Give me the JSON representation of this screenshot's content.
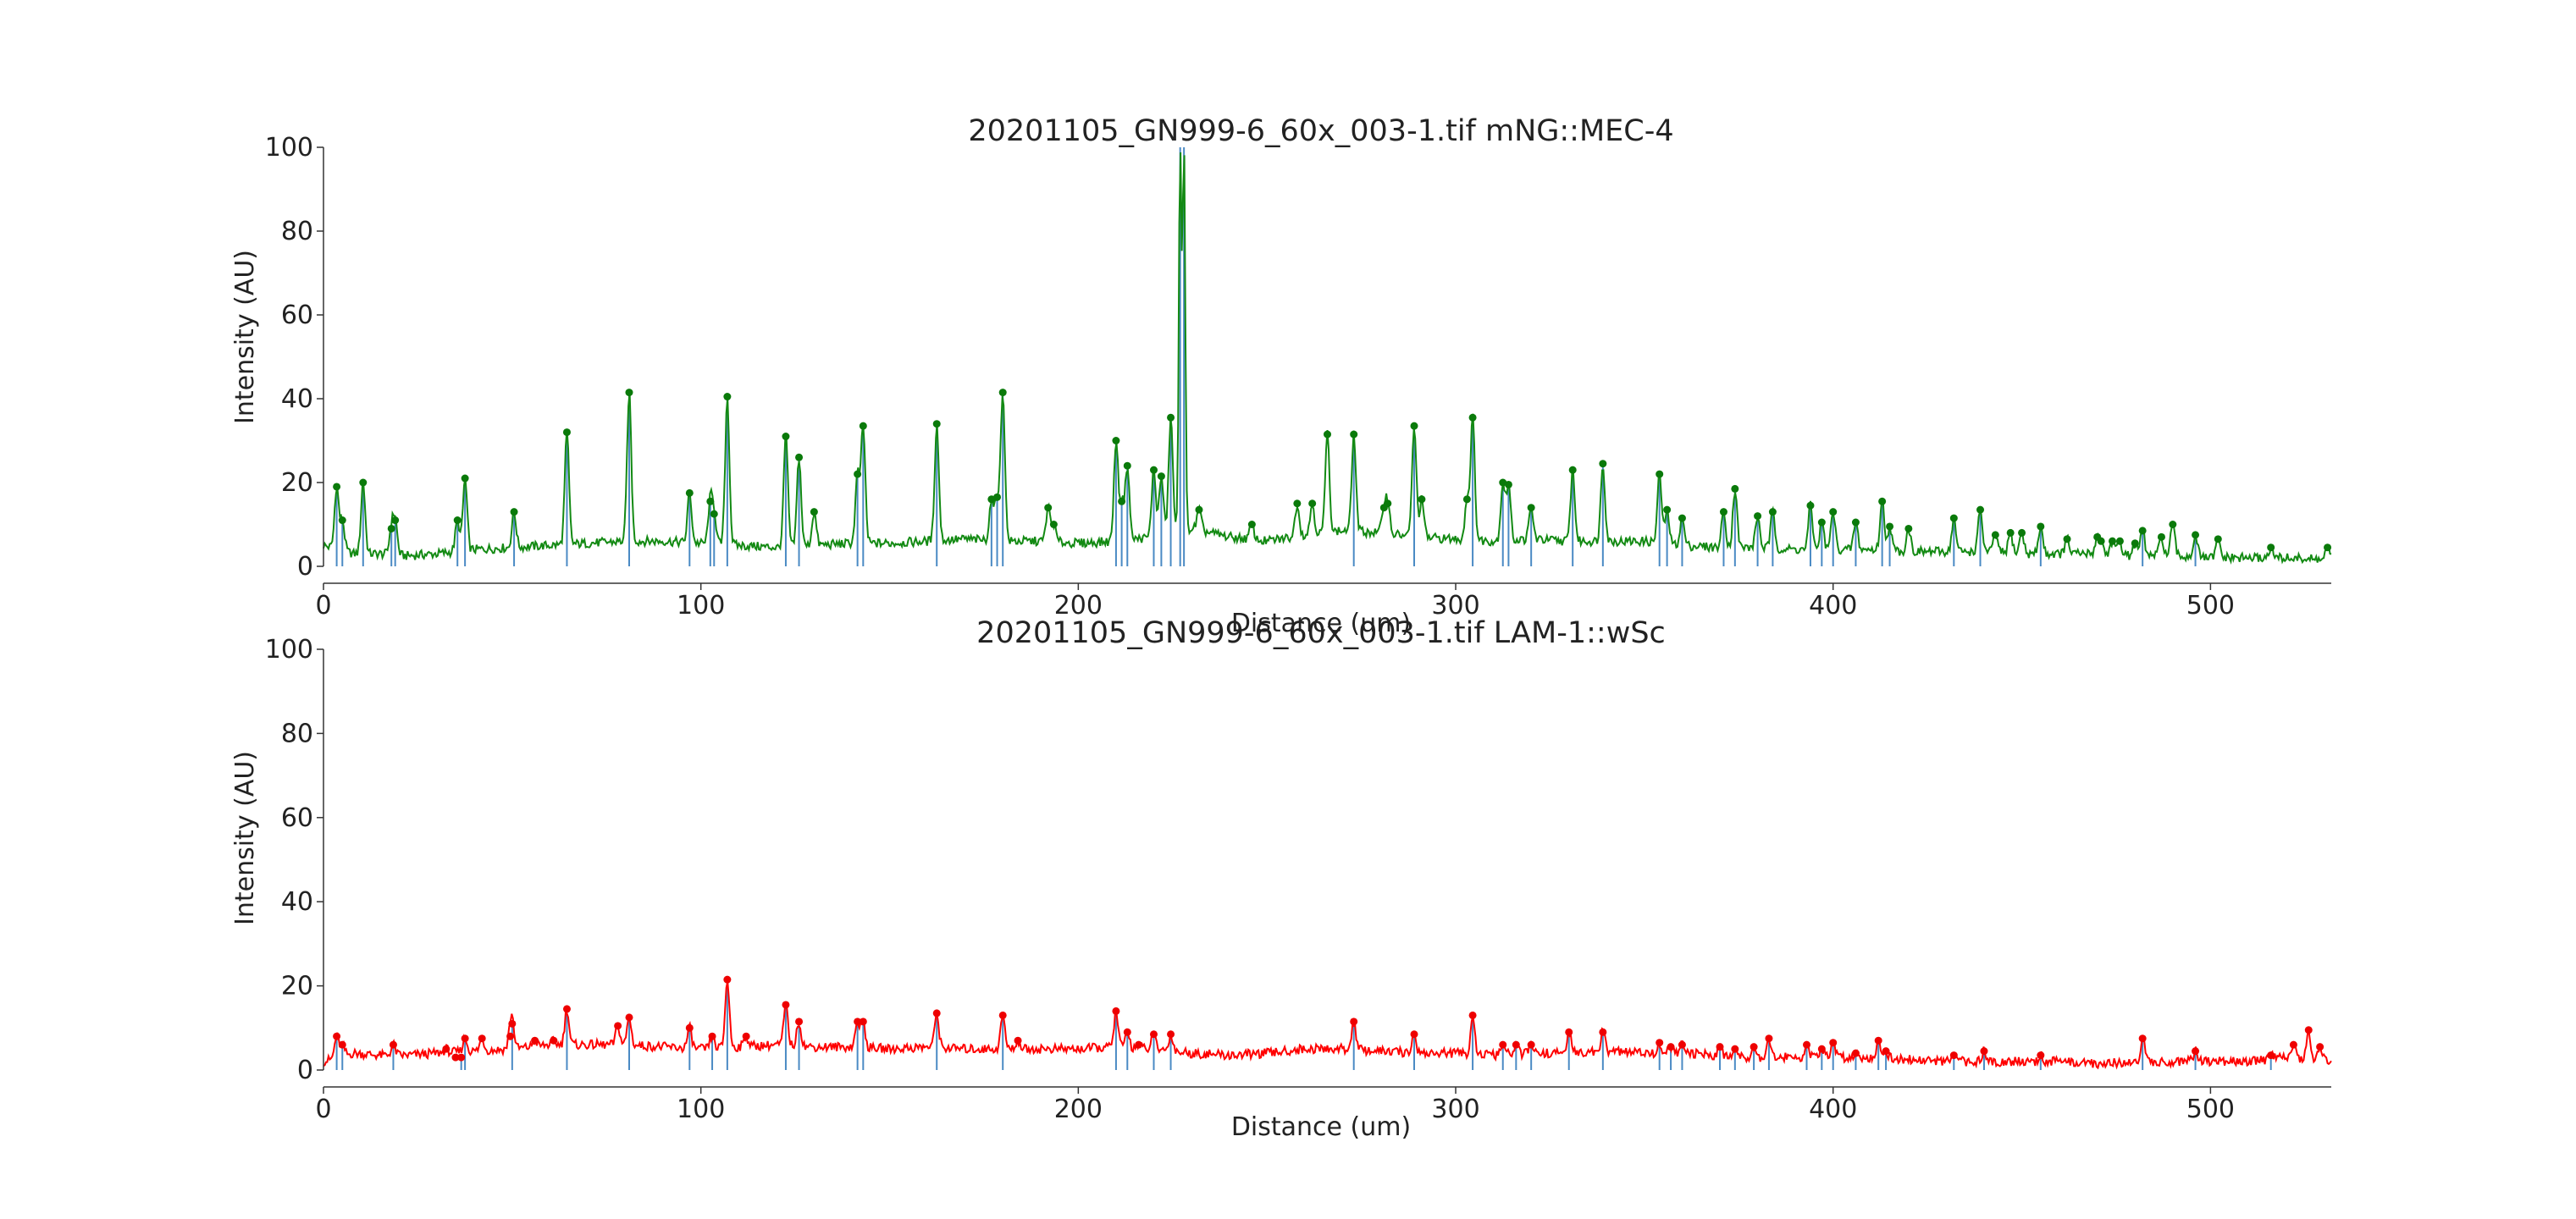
{
  "chart_data": [
    {
      "type": "line",
      "title": "20201105_GN999-6_60x_003-1.tif mNG::MEC-4",
      "xlabel": "Distance (um)",
      "ylabel": "Intensity (AU)",
      "xlim": [
        0,
        532
      ],
      "ylim": [
        0,
        100
      ],
      "xticks": [
        "0",
        "100",
        "200",
        "300",
        "400",
        "500"
      ],
      "yticks": [
        "0",
        "20",
        "40",
        "60",
        "80",
        "100"
      ],
      "grid": false,
      "line_color": "#138a13",
      "marker_color": "#0a7a0a",
      "peak_line_color": "#4a8ac4",
      "baseline": [
        [
          0,
          5
        ],
        [
          8,
          3
        ],
        [
          15,
          3
        ],
        [
          22,
          2.5
        ],
        [
          30,
          3
        ],
        [
          40,
          4
        ],
        [
          50,
          4.5
        ],
        [
          60,
          5
        ],
        [
          70,
          5.5
        ],
        [
          80,
          6
        ],
        [
          90,
          6
        ],
        [
          100,
          5.5
        ],
        [
          110,
          5
        ],
        [
          120,
          4.5
        ],
        [
          130,
          5
        ],
        [
          140,
          5.5
        ],
        [
          150,
          5.5
        ],
        [
          160,
          6
        ],
        [
          170,
          6.5
        ],
        [
          180,
          6
        ],
        [
          190,
          6
        ],
        [
          200,
          5.5
        ],
        [
          210,
          6
        ],
        [
          220,
          7
        ],
        [
          230,
          9
        ],
        [
          240,
          7
        ],
        [
          250,
          6
        ],
        [
          260,
          7.5
        ],
        [
          270,
          8.5
        ],
        [
          280,
          8
        ],
        [
          290,
          7
        ],
        [
          300,
          6.5
        ],
        [
          310,
          6
        ],
        [
          320,
          6.5
        ],
        [
          330,
          6
        ],
        [
          340,
          6
        ],
        [
          350,
          6
        ],
        [
          360,
          5
        ],
        [
          370,
          4.5
        ],
        [
          380,
          4.5
        ],
        [
          390,
          4
        ],
        [
          400,
          4
        ],
        [
          410,
          4
        ],
        [
          420,
          3.5
        ],
        [
          430,
          3.5
        ],
        [
          440,
          3.5
        ],
        [
          450,
          3
        ],
        [
          460,
          3
        ],
        [
          470,
          3
        ],
        [
          480,
          2.5
        ],
        [
          490,
          2.5
        ],
        [
          500,
          2
        ],
        [
          510,
          2
        ],
        [
          520,
          2
        ],
        [
          532,
          1.5
        ]
      ],
      "peaks": [
        [
          3.5,
          19
        ],
        [
          5,
          11
        ],
        [
          10.5,
          20
        ],
        [
          18,
          9
        ],
        [
          19,
          11
        ],
        [
          35.5,
          11
        ],
        [
          37.5,
          21
        ],
        [
          50.5,
          13
        ],
        [
          64.5,
          32
        ],
        [
          81,
          41.5
        ],
        [
          97,
          17.5
        ],
        [
          102.5,
          15.5
        ],
        [
          103.5,
          12.5
        ],
        [
          107,
          40.5
        ],
        [
          122.5,
          31
        ],
        [
          126,
          26
        ],
        [
          130,
          13
        ],
        [
          141.5,
          22
        ],
        [
          143,
          33.5
        ],
        [
          162.5,
          34
        ],
        [
          177,
          16
        ],
        [
          178.5,
          16.5
        ],
        [
          180,
          41.5
        ],
        [
          192,
          14
        ],
        [
          193.5,
          10
        ],
        [
          210,
          30
        ],
        [
          211.5,
          15.5
        ],
        [
          213,
          24
        ],
        [
          220,
          23
        ],
        [
          222,
          21.5
        ],
        [
          224.5,
          35.5
        ],
        [
          227,
          100
        ],
        [
          228,
          100
        ],
        [
          232,
          13.5
        ],
        [
          246,
          10
        ],
        [
          258,
          15
        ],
        [
          262,
          15
        ],
        [
          266,
          31.5
        ],
        [
          273,
          31.5
        ],
        [
          281,
          14
        ],
        [
          282,
          15
        ],
        [
          289,
          33.5
        ],
        [
          291,
          16
        ],
        [
          303,
          16
        ],
        [
          304.5,
          35.5
        ],
        [
          312.5,
          20
        ],
        [
          314,
          19.5
        ],
        [
          320,
          14
        ],
        [
          331,
          23
        ],
        [
          339,
          24.5
        ],
        [
          354,
          22
        ],
        [
          356,
          13.5
        ],
        [
          360,
          11.5
        ],
        [
          371,
          13
        ],
        [
          374,
          18.5
        ],
        [
          380,
          12
        ],
        [
          384,
          13
        ],
        [
          394,
          14.5
        ],
        [
          397,
          10.5
        ],
        [
          400,
          13
        ],
        [
          406,
          10.5
        ],
        [
          413,
          15.5
        ],
        [
          415,
          9.5
        ],
        [
          420,
          9
        ],
        [
          432,
          11.5
        ],
        [
          439,
          13.5
        ],
        [
          443,
          7.5
        ],
        [
          447,
          8
        ],
        [
          450,
          8
        ],
        [
          455,
          9.5
        ],
        [
          462,
          6.5
        ],
        [
          470,
          7
        ],
        [
          471,
          6
        ],
        [
          474,
          6
        ],
        [
          476,
          6
        ],
        [
          480,
          5.5
        ],
        [
          482,
          8.5
        ],
        [
          487,
          7
        ],
        [
          490,
          10
        ],
        [
          496,
          7.5
        ],
        [
          502,
          6.5
        ],
        [
          516,
          4.5
        ],
        [
          531,
          4.5
        ]
      ],
      "peak_lines": [
        [
          3.5,
          19
        ],
        [
          5,
          11
        ],
        [
          10.5,
          20
        ],
        [
          18,
          9
        ],
        [
          19,
          11
        ],
        [
          35.5,
          11
        ],
        [
          37.5,
          21
        ],
        [
          50.5,
          13
        ],
        [
          64.5,
          32
        ],
        [
          81,
          41.5
        ],
        [
          97,
          17.5
        ],
        [
          102.5,
          15.5
        ],
        [
          103.5,
          12.5
        ],
        [
          107,
          40.5
        ],
        [
          122.5,
          31
        ],
        [
          126,
          26
        ],
        [
          141.5,
          22
        ],
        [
          143,
          33.5
        ],
        [
          162.5,
          34
        ],
        [
          177,
          16
        ],
        [
          178.5,
          16.5
        ],
        [
          180,
          41.5
        ],
        [
          210,
          30
        ],
        [
          211.5,
          15.5
        ],
        [
          213,
          24
        ],
        [
          220,
          23
        ],
        [
          222,
          21.5
        ],
        [
          224.5,
          35.5
        ],
        [
          227,
          100
        ],
        [
          228,
          100
        ],
        [
          273,
          31.5
        ],
        [
          289,
          33.5
        ],
        [
          304.5,
          35.5
        ],
        [
          312.5,
          20
        ],
        [
          314,
          19.5
        ],
        [
          320,
          14
        ],
        [
          331,
          23
        ],
        [
          339,
          24.5
        ],
        [
          354,
          22
        ],
        [
          356,
          13.5
        ],
        [
          360,
          11.5
        ],
        [
          371,
          13
        ],
        [
          374,
          18.5
        ],
        [
          380,
          12
        ],
        [
          384,
          13
        ],
        [
          394,
          14.5
        ],
        [
          397,
          10.5
        ],
        [
          400,
          13
        ],
        [
          406,
          10.5
        ],
        [
          413,
          15.5
        ],
        [
          415,
          9.5
        ],
        [
          432,
          11.5
        ],
        [
          439,
          13.5
        ],
        [
          455,
          9.5
        ],
        [
          482,
          8.5
        ],
        [
          496,
          7.5
        ]
      ]
    },
    {
      "type": "line",
      "title": "20201105_GN999-6_60x_003-1.tif LAM-1::wSc",
      "xlabel": "Distance (um)",
      "ylabel": "Intensity (AU)",
      "xlim": [
        0,
        532
      ],
      "ylim": [
        0,
        100
      ],
      "xticks": [
        "0",
        "100",
        "200",
        "300",
        "400",
        "500"
      ],
      "yticks": [
        "0",
        "20",
        "40",
        "60",
        "80",
        "100"
      ],
      "grid": false,
      "line_color": "#ff0000",
      "marker_color": "#ee0000",
      "peak_line_color": "#4a8ac4",
      "baseline": [
        [
          0,
          2
        ],
        [
          8,
          4
        ],
        [
          15,
          3.5
        ],
        [
          22,
          3.5
        ],
        [
          30,
          4
        ],
        [
          40,
          4.5
        ],
        [
          50,
          5
        ],
        [
          60,
          6
        ],
        [
          70,
          6
        ],
        [
          80,
          6
        ],
        [
          90,
          5.5
        ],
        [
          100,
          5
        ],
        [
          110,
          5.5
        ],
        [
          120,
          6
        ],
        [
          130,
          5.5
        ],
        [
          140,
          5.5
        ],
        [
          150,
          5
        ],
        [
          160,
          5.5
        ],
        [
          170,
          5
        ],
        [
          180,
          5
        ],
        [
          190,
          5
        ],
        [
          200,
          5
        ],
        [
          210,
          5.5
        ],
        [
          220,
          5
        ],
        [
          230,
          4
        ],
        [
          240,
          3.5
        ],
        [
          250,
          4
        ],
        [
          260,
          5
        ],
        [
          270,
          5
        ],
        [
          280,
          4.5
        ],
        [
          290,
          4
        ],
        [
          300,
          4
        ],
        [
          310,
          3.5
        ],
        [
          320,
          4
        ],
        [
          330,
          4
        ],
        [
          340,
          4.5
        ],
        [
          350,
          4
        ],
        [
          360,
          4
        ],
        [
          370,
          3.5
        ],
        [
          380,
          3
        ],
        [
          390,
          3
        ],
        [
          400,
          3
        ],
        [
          410,
          3
        ],
        [
          420,
          2.5
        ],
        [
          430,
          2
        ],
        [
          440,
          2
        ],
        [
          450,
          2
        ],
        [
          460,
          2
        ],
        [
          470,
          1.5
        ],
        [
          480,
          2
        ],
        [
          490,
          2
        ],
        [
          500,
          2
        ],
        [
          510,
          2
        ],
        [
          520,
          3
        ],
        [
          532,
          2
        ]
      ],
      "peaks": [
        [
          3.5,
          8
        ],
        [
          5,
          6
        ],
        [
          18.5,
          6
        ],
        [
          32.5,
          5
        ],
        [
          35,
          3
        ],
        [
          36.5,
          3
        ],
        [
          37.5,
          7.5
        ],
        [
          42,
          7.5
        ],
        [
          49.5,
          8
        ],
        [
          50,
          11
        ],
        [
          56,
          7
        ],
        [
          61,
          7
        ],
        [
          64.5,
          14.5
        ],
        [
          78,
          10.5
        ],
        [
          81,
          12.5
        ],
        [
          97,
          10
        ],
        [
          103,
          8
        ],
        [
          107,
          21.5
        ],
        [
          112,
          8
        ],
        [
          122.5,
          15.5
        ],
        [
          126,
          11.5
        ],
        [
          141.5,
          11.5
        ],
        [
          143,
          11.5
        ],
        [
          162.5,
          13.5
        ],
        [
          180,
          13
        ],
        [
          184,
          7
        ],
        [
          210,
          14
        ],
        [
          213,
          9
        ],
        [
          216,
          6
        ],
        [
          220,
          8.5
        ],
        [
          224.5,
          8.5
        ],
        [
          273,
          11.5
        ],
        [
          289,
          8.5
        ],
        [
          304.5,
          13
        ],
        [
          312.5,
          6
        ],
        [
          316,
          6
        ],
        [
          320,
          6
        ],
        [
          330,
          9
        ],
        [
          339,
          9
        ],
        [
          354,
          6.5
        ],
        [
          357,
          5.5
        ],
        [
          360,
          6
        ],
        [
          370,
          5.5
        ],
        [
          374,
          5
        ],
        [
          379,
          5.5
        ],
        [
          383,
          7.5
        ],
        [
          393,
          6
        ],
        [
          397,
          5
        ],
        [
          400,
          6.5
        ],
        [
          406,
          4
        ],
        [
          412,
          7
        ],
        [
          414,
          4.5
        ],
        [
          432,
          3.5
        ],
        [
          440,
          4.5
        ],
        [
          455,
          3.5
        ],
        [
          482,
          7.5
        ],
        [
          496,
          4.5
        ],
        [
          516,
          3.5
        ],
        [
          522,
          6
        ],
        [
          526,
          9.5
        ],
        [
          529,
          5.5
        ]
      ],
      "peak_lines": [
        [
          3.5,
          8
        ],
        [
          5,
          6
        ],
        [
          18.5,
          6
        ],
        [
          36.5,
          3
        ],
        [
          37.5,
          7.5
        ],
        [
          50,
          11
        ],
        [
          64.5,
          14.5
        ],
        [
          81,
          12.5
        ],
        [
          97,
          10
        ],
        [
          103,
          8
        ],
        [
          107,
          21.5
        ],
        [
          122.5,
          15.5
        ],
        [
          126,
          11.5
        ],
        [
          141.5,
          11.5
        ],
        [
          143,
          11.5
        ],
        [
          162.5,
          13.5
        ],
        [
          180,
          13
        ],
        [
          210,
          14
        ],
        [
          213,
          9
        ],
        [
          220,
          8.5
        ],
        [
          224.5,
          8.5
        ],
        [
          273,
          11.5
        ],
        [
          289,
          8.5
        ],
        [
          304.5,
          13
        ],
        [
          312.5,
          6
        ],
        [
          316,
          6
        ],
        [
          320,
          6
        ],
        [
          330,
          9
        ],
        [
          339,
          9
        ],
        [
          354,
          6.5
        ],
        [
          357,
          5.5
        ],
        [
          360,
          6
        ],
        [
          370,
          5.5
        ],
        [
          374,
          5
        ],
        [
          379,
          5.5
        ],
        [
          383,
          7.5
        ],
        [
          393,
          6
        ],
        [
          397,
          5
        ],
        [
          400,
          6.5
        ],
        [
          406,
          4
        ],
        [
          412,
          7
        ],
        [
          414,
          4.5
        ],
        [
          432,
          3.5
        ],
        [
          440,
          4.5
        ],
        [
          455,
          3.5
        ],
        [
          482,
          7.5
        ],
        [
          496,
          4.5
        ],
        [
          516,
          3.5
        ]
      ]
    }
  ]
}
